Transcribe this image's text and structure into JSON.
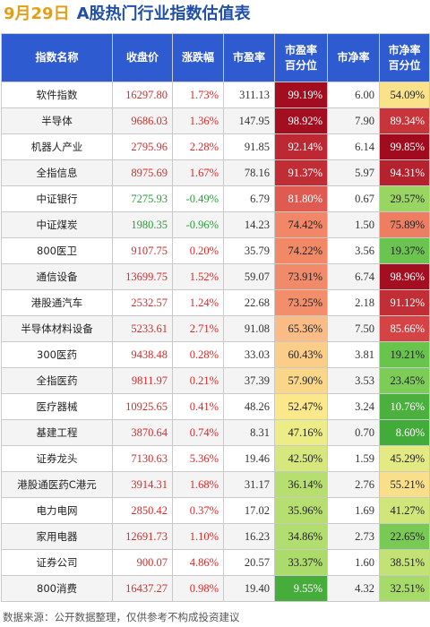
{
  "title": {
    "date": "9月29日",
    "text": "A股热门行业指数估值表"
  },
  "table": {
    "headers": {
      "name": "指数名称",
      "close": "收盘价",
      "change": "涨跌幅",
      "pe": "市盈率",
      "pe_pct_line1": "市盈率",
      "pe_pct_line2": "百分位",
      "pb": "市净率",
      "pb_pct_line1": "市净率",
      "pb_pct_line2": "百分位"
    },
    "rows": [
      {
        "name": "软件指数",
        "close": "16297.80",
        "change": "1.73%",
        "direction": "up",
        "pe": "311.13",
        "pe_pct": "99.19%",
        "pb": "6.00",
        "pb_pct": "54.09%"
      },
      {
        "name": "半导体",
        "close": "9686.03",
        "change": "1.36%",
        "direction": "up",
        "pe": "147.95",
        "pe_pct": "98.92%",
        "pb": "7.90",
        "pb_pct": "89.34%"
      },
      {
        "name": "机器人产业",
        "close": "2795.96",
        "change": "2.28%",
        "direction": "up",
        "pe": "91.85",
        "pe_pct": "92.14%",
        "pb": "6.14",
        "pb_pct": "99.85%"
      },
      {
        "name": "全指信息",
        "close": "8975.69",
        "change": "1.67%",
        "direction": "up",
        "pe": "78.16",
        "pe_pct": "91.37%",
        "pb": "5.97",
        "pb_pct": "94.31%"
      },
      {
        "name": "中证银行",
        "close": "7275.93",
        "change": "-0.49%",
        "direction": "down",
        "pe": "6.79",
        "pe_pct": "81.80%",
        "pb": "0.67",
        "pb_pct": "29.57%"
      },
      {
        "name": "中证煤炭",
        "close": "1980.35",
        "change": "-0.96%",
        "direction": "down",
        "pe": "14.23",
        "pe_pct": "74.42%",
        "pb": "1.50",
        "pb_pct": "75.89%"
      },
      {
        "name": "800医卫",
        "close": "9107.75",
        "change": "0.20%",
        "direction": "up",
        "pe": "35.79",
        "pe_pct": "74.22%",
        "pb": "3.56",
        "pb_pct": "19.37%"
      },
      {
        "name": "通信设备",
        "close": "13699.75",
        "change": "1.52%",
        "direction": "up",
        "pe": "59.07",
        "pe_pct": "73.91%",
        "pb": "6.74",
        "pb_pct": "98.96%"
      },
      {
        "name": "港股通汽车",
        "close": "2532.57",
        "change": "1.24%",
        "direction": "up",
        "pe": "22.68",
        "pe_pct": "73.25%",
        "pb": "2.18",
        "pb_pct": "91.12%"
      },
      {
        "name": "半导体材料设备",
        "close": "5233.61",
        "change": "2.71%",
        "direction": "up",
        "pe": "91.08",
        "pe_pct": "65.36%",
        "pb": "7.50",
        "pb_pct": "85.66%"
      },
      {
        "name": "300医药",
        "close": "9438.48",
        "change": "0.28%",
        "direction": "up",
        "pe": "33.03",
        "pe_pct": "60.43%",
        "pb": "3.81",
        "pb_pct": "19.21%"
      },
      {
        "name": "全指医药",
        "close": "9811.97",
        "change": "0.21%",
        "direction": "up",
        "pe": "37.39",
        "pe_pct": "57.90%",
        "pb": "3.53",
        "pb_pct": "23.45%"
      },
      {
        "name": "医疗器械",
        "close": "10925.65",
        "change": "0.41%",
        "direction": "up",
        "pe": "48.26",
        "pe_pct": "52.47%",
        "pb": "3.24",
        "pb_pct": "10.76%"
      },
      {
        "name": "基建工程",
        "close": "3870.64",
        "change": "0.74%",
        "direction": "up",
        "pe": "8.31",
        "pe_pct": "47.16%",
        "pb": "0.70",
        "pb_pct": "8.60%"
      },
      {
        "name": "证券龙头",
        "close": "7130.63",
        "change": "5.36%",
        "direction": "up",
        "pe": "19.46",
        "pe_pct": "42.50%",
        "pb": "1.59",
        "pb_pct": "45.29%"
      },
      {
        "name": "港股通医药C港元",
        "close": "3914.31",
        "change": "1.68%",
        "direction": "up",
        "pe": "31.17",
        "pe_pct": "36.14%",
        "pb": "2.76",
        "pb_pct": "55.21%"
      },
      {
        "name": "电力电网",
        "close": "2850.42",
        "change": "0.37%",
        "direction": "up",
        "pe": "17.02",
        "pe_pct": "35.96%",
        "pb": "1.69",
        "pb_pct": "41.27%"
      },
      {
        "name": "家用电器",
        "close": "12691.73",
        "change": "1.10%",
        "direction": "up",
        "pe": "16.23",
        "pe_pct": "34.86%",
        "pb": "2.73",
        "pb_pct": "22.65%"
      },
      {
        "name": "证券公司",
        "close": "900.07",
        "change": "4.86%",
        "direction": "up",
        "pe": "20.57",
        "pe_pct": "33.37%",
        "pb": "1.60",
        "pb_pct": "38.51%"
      },
      {
        "name": "800消费",
        "close": "16437.27",
        "change": "0.98%",
        "direction": "up",
        "pe": "19.40",
        "pe_pct": "9.55%",
        "pb": "4.32",
        "pb_pct": "32.51%"
      }
    ]
  },
  "colors": {
    "header_bg": "#2f5bd1",
    "date_color": "#e39e17",
    "title_color": "#1f4fa6",
    "up": "#d62b2b",
    "down": "#2a9d3c"
  },
  "footer": "数据来源：公开数据整理，仅供参考不构成投资建议"
}
